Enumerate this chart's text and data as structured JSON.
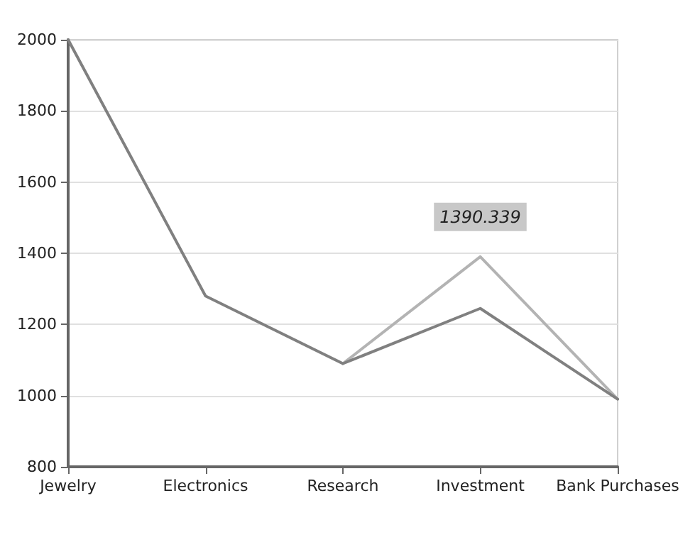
{
  "chart_data": {
    "type": "line",
    "categories": [
      "Jewelry",
      "Electronics",
      "Research",
      "Investment",
      "Bank Purchases"
    ],
    "series": [
      {
        "color": "#b3b3b3",
        "values": [
          null,
          null,
          1090,
          1390.339,
          990
        ],
        "value_labels": [
          null,
          null,
          null,
          "1390.339",
          null
        ]
      },
      {
        "color": "#808080",
        "values": [
          2000,
          1280,
          1090,
          1245,
          990
        ]
      }
    ],
    "ylim": [
      800,
      2000
    ],
    "yticks": [
      800,
      1000,
      1200,
      1400,
      1600,
      1800,
      2000
    ],
    "grid": "y",
    "marker": "none",
    "line_style": "solid"
  }
}
